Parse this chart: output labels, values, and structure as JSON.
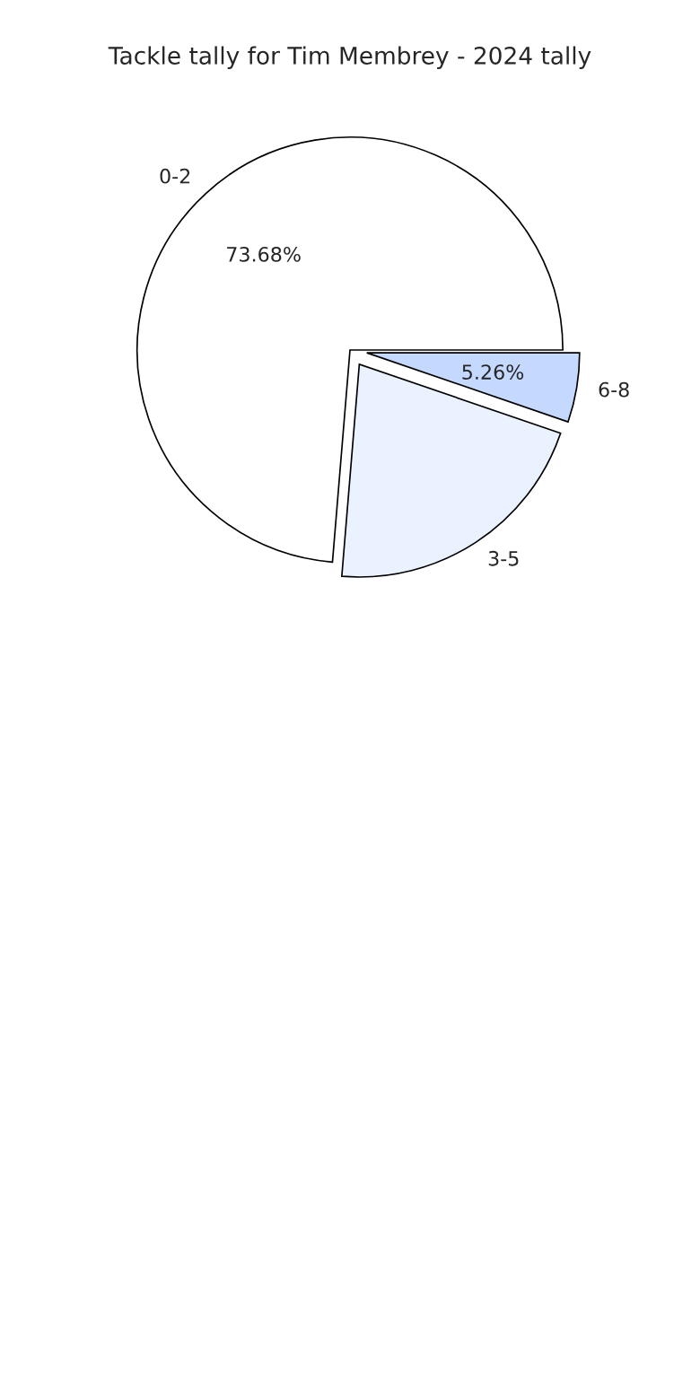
{
  "chart_data": {
    "type": "pie",
    "title": "Tackle tally for Tim Membrey - 2024 tally",
    "categories": [
      "0-2",
      "3-5",
      "6-8"
    ],
    "values": [
      73.68,
      21.05,
      5.26
    ],
    "colors": [
      "#ffffff",
      "#eaf1ff",
      "#c5d9ff"
    ],
    "value_labels": [
      "73.68%",
      null,
      "5.26%"
    ]
  }
}
